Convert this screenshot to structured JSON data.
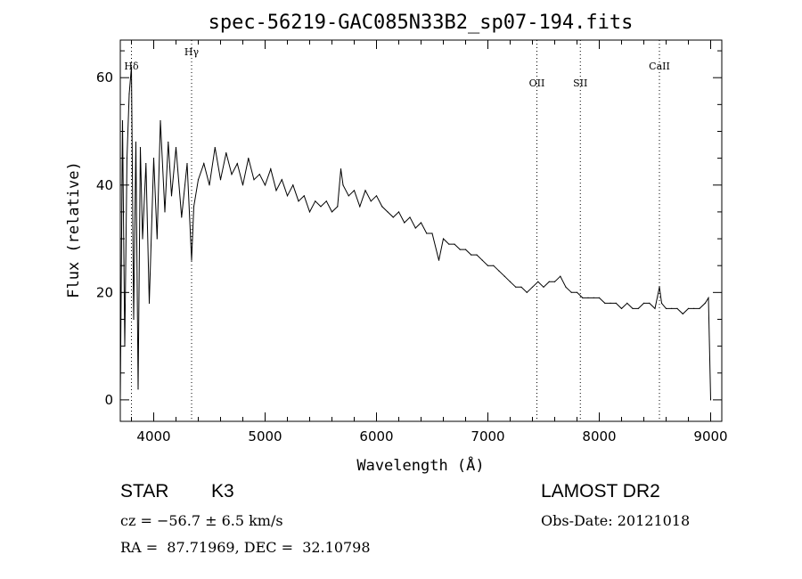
{
  "chart_data": {
    "type": "line",
    "title": "spec-56219-GAC085N33B2_sp07-194.fits",
    "xlabel": "Wavelength (Å)",
    "ylabel": "Flux (relative)",
    "xlim": [
      3700,
      9100
    ],
    "ylim": [
      -4,
      67
    ],
    "xticks": [
      4000,
      5000,
      6000,
      7000,
      8000,
      9000
    ],
    "xtick_labels": [
      "4000",
      "5000",
      "6000",
      "7000",
      "8000",
      "9000"
    ],
    "yticks": [
      0,
      20,
      40,
      60
    ],
    "ytick_labels": [
      "0",
      "20",
      "40",
      "60"
    ],
    "grid": false,
    "lines_marked": [
      {
        "label": "Hδ",
        "x": 3800
      },
      {
        "label": "Hγ",
        "x": 4340
      },
      {
        "label": "OII",
        "x": 7440
      },
      {
        "label": "SII",
        "x": 7830
      },
      {
        "label": "CaII",
        "x": 8540
      }
    ],
    "series": [
      {
        "x": [
          3700,
          3720,
          3740,
          3760,
          3780,
          3800,
          3820,
          3840,
          3860,
          3880,
          3900,
          3930,
          3960,
          4000,
          4030,
          4060,
          4100,
          4130,
          4160,
          4200,
          4250,
          4300,
          4340,
          4360,
          4400,
          4450,
          4500,
          4550,
          4600,
          4650,
          4700,
          4750,
          4800,
          4850,
          4900,
          4950,
          5000,
          5050,
          5100,
          5150,
          5200,
          5250,
          5300,
          5350,
          5400,
          5450,
          5500,
          5550,
          5600,
          5650,
          5680,
          5700,
          5750,
          5800,
          5850,
          5900,
          5950,
          6000,
          6050,
          6100,
          6150,
          6200,
          6250,
          6300,
          6350,
          6400,
          6450,
          6500,
          6560,
          6600,
          6650,
          6700,
          6750,
          6800,
          6850,
          6900,
          6950,
          7000,
          7050,
          7100,
          7150,
          7200,
          7250,
          7300,
          7350,
          7400,
          7450,
          7500,
          7550,
          7600,
          7650,
          7700,
          7750,
          7800,
          7850,
          7900,
          7950,
          8000,
          8050,
          8100,
          8150,
          8200,
          8250,
          8300,
          8350,
          8400,
          8450,
          8500,
          8540,
          8560,
          8600,
          8650,
          8700,
          8750,
          8800,
          8850,
          8900,
          8950,
          8980,
          9000
        ],
        "y": [
          0,
          52,
          10,
          45,
          57,
          62,
          15,
          48,
          2,
          47,
          30,
          44,
          18,
          45,
          30,
          52,
          35,
          48,
          38,
          47,
          34,
          44,
          26,
          36,
          41,
          44,
          40,
          47,
          41,
          46,
          42,
          44,
          40,
          45,
          41,
          42,
          40,
          43,
          39,
          41,
          38,
          40,
          37,
          38,
          35,
          37,
          36,
          37,
          35,
          36,
          43,
          40,
          38,
          39,
          36,
          39,
          37,
          38,
          36,
          35,
          34,
          35,
          33,
          34,
          32,
          33,
          31,
          31,
          26,
          30,
          29,
          29,
          28,
          28,
          27,
          27,
          26,
          25,
          25,
          24,
          23,
          22,
          21,
          21,
          20,
          21,
          22,
          21,
          22,
          22,
          23,
          21,
          20,
          20,
          19,
          19,
          19,
          19,
          18,
          18,
          18,
          17,
          18,
          17,
          17,
          18,
          18,
          17,
          21,
          18,
          17,
          17,
          17,
          16,
          17,
          17,
          17,
          18,
          19,
          0
        ]
      }
    ]
  },
  "info": {
    "object_class": "STAR",
    "subclass": "K3",
    "survey": "LAMOST DR2",
    "velocity": "cz = −56.7 ± 6.5 km/s",
    "obs_date": "Obs-Date: 20121018",
    "coords": "RA =  87.71969, DEC =  32.10798"
  }
}
